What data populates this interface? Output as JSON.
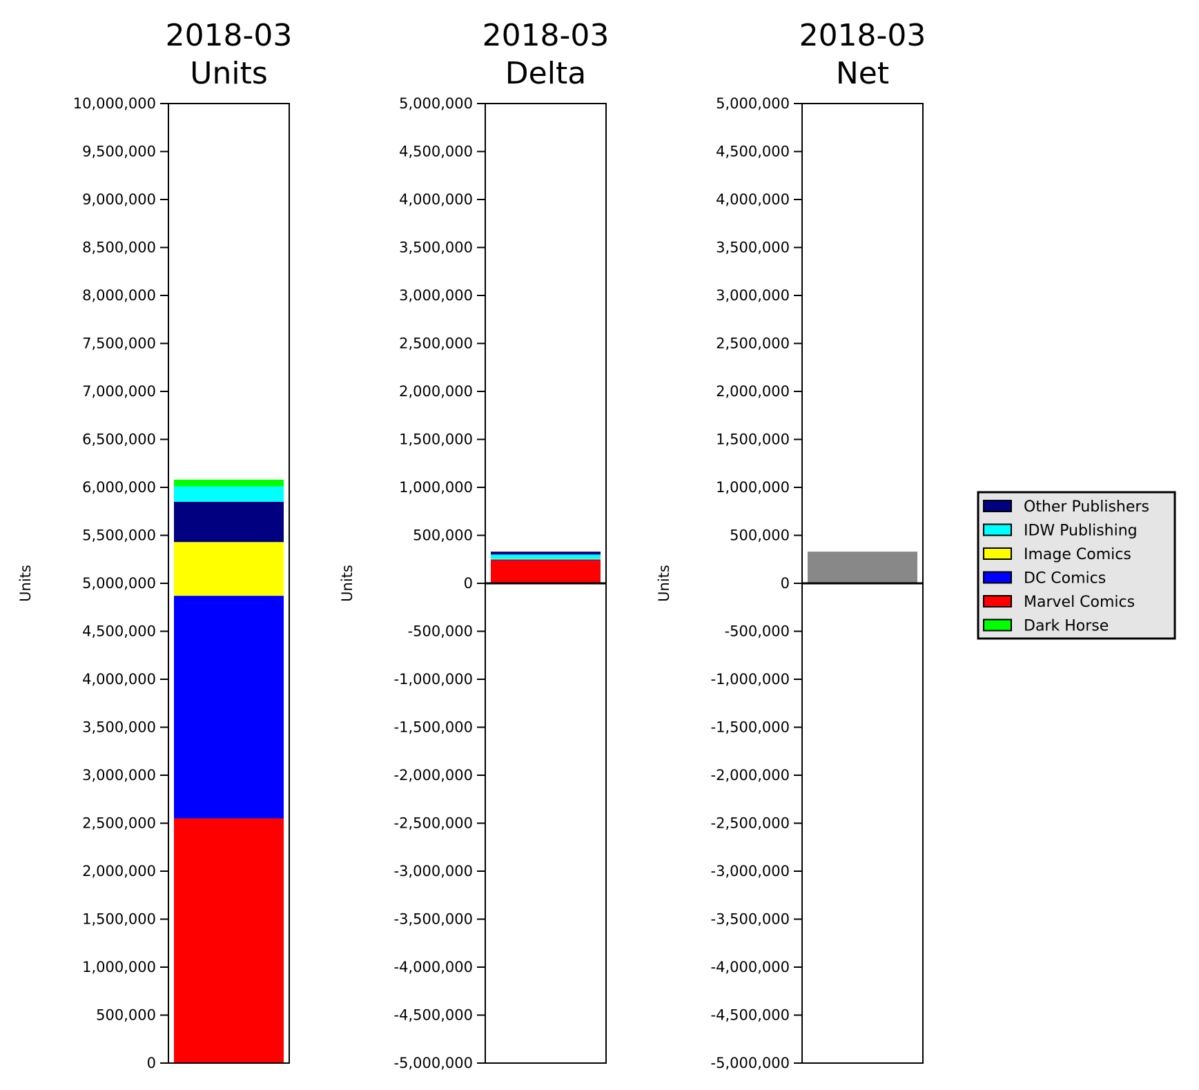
{
  "chart_data": [
    {
      "type": "bar",
      "stacked": true,
      "title_lines": [
        "2018-03",
        "Units"
      ],
      "ylabel": "Units",
      "ylim": [
        0,
        10000000
      ],
      "yticks": [
        0,
        500000,
        1000000,
        1500000,
        2000000,
        2500000,
        3000000,
        3500000,
        4000000,
        4500000,
        5000000,
        5500000,
        6000000,
        6500000,
        7000000,
        7500000,
        8000000,
        8500000,
        9000000,
        9500000,
        10000000
      ],
      "ytick_labels": [
        "0",
        "500,000",
        "1,000,000",
        "1,500,000",
        "2,000,000",
        "2,500,000",
        "3,000,000",
        "3,500,000",
        "4,000,000",
        "4,500,000",
        "5,000,000",
        "5,500,000",
        "6,000,000",
        "6,500,000",
        "7,000,000",
        "7,500,000",
        "8,000,000",
        "8,500,000",
        "9,000,000",
        "9,500,000",
        "10,000,000"
      ],
      "series": [
        {
          "name": "Marvel Comics",
          "value": 2550000,
          "color": "#ff0000"
        },
        {
          "name": "DC Comics",
          "value": 2320000,
          "color": "#0000ff"
        },
        {
          "name": "Image Comics",
          "value": 560000,
          "color": "#ffff00"
        },
        {
          "name": "Other Publishers",
          "value": 420000,
          "color": "#000080"
        },
        {
          "name": "IDW Publishing",
          "value": 160000,
          "color": "#00ffff"
        },
        {
          "name": "Dark Horse",
          "value": 70000,
          "color": "#00ff00"
        }
      ]
    },
    {
      "type": "bar",
      "stacked": true,
      "title_lines": [
        "2018-03",
        "Delta"
      ],
      "ylabel": "Units",
      "ylim": [
        -5000000,
        5000000
      ],
      "zero_line": true,
      "yticks": [
        -5000000,
        -4500000,
        -4000000,
        -3500000,
        -3000000,
        -2500000,
        -2000000,
        -1500000,
        -1000000,
        -500000,
        0,
        500000,
        1000000,
        1500000,
        2000000,
        2500000,
        3000000,
        3500000,
        4000000,
        4500000,
        5000000
      ],
      "ytick_labels": [
        "-5,000,000",
        "-4,500,000",
        "-4,000,000",
        "-3,500,000",
        "-3,000,000",
        "-2,500,000",
        "-2,000,000",
        "-1,500,000",
        "-1,000,000",
        "-500,000",
        "0",
        "500,000",
        "1,000,000",
        "1,500,000",
        "2,000,000",
        "2,500,000",
        "3,000,000",
        "3,500,000",
        "4,000,000",
        "4,500,000",
        "5,000,000"
      ],
      "series": [
        {
          "name": "Marvel Comics",
          "value": 240000,
          "color": "#ff0000"
        },
        {
          "name": "DC Comics",
          "value": 10000,
          "color": "#0000ff"
        },
        {
          "name": "Image Comics",
          "value": 5000,
          "color": "#ffff00"
        },
        {
          "name": "IDW Publishing",
          "value": 45000,
          "color": "#00ffff"
        },
        {
          "name": "Other Publishers",
          "value": 30000,
          "color": "#000080"
        }
      ]
    },
    {
      "type": "bar",
      "title_lines": [
        "2018-03",
        "Net"
      ],
      "ylabel": "Units",
      "ylim": [
        -5000000,
        5000000
      ],
      "zero_line": true,
      "yticks": [
        -5000000,
        -4500000,
        -4000000,
        -3500000,
        -3000000,
        -2500000,
        -2000000,
        -1500000,
        -1000000,
        -500000,
        0,
        500000,
        1000000,
        1500000,
        2000000,
        2500000,
        3000000,
        3500000,
        4000000,
        4500000,
        5000000
      ],
      "ytick_labels": [
        "-5,000,000",
        "-4,500,000",
        "-4,000,000",
        "-3,500,000",
        "-3,000,000",
        "-2,500,000",
        "-2,000,000",
        "-1,500,000",
        "-1,000,000",
        "-500,000",
        "0",
        "500,000",
        "1,000,000",
        "1,500,000",
        "2,000,000",
        "2,500,000",
        "3,000,000",
        "3,500,000",
        "4,000,000",
        "4,500,000",
        "5,000,000"
      ],
      "series": [
        {
          "value": 330000,
          "color": "#888888"
        }
      ]
    }
  ],
  "legend": {
    "placement": "right",
    "background": "#e5e5e5",
    "entries": [
      {
        "label": "Other Publishers",
        "color": "#000080"
      },
      {
        "label": "IDW Publishing",
        "color": "#00ffff"
      },
      {
        "label": "Image Comics",
        "color": "#ffff00"
      },
      {
        "label": "DC Comics",
        "color": "#0000ff"
      },
      {
        "label": "Marvel Comics",
        "color": "#ff0000"
      },
      {
        "label": "Dark Horse",
        "color": "#00ff00"
      }
    ]
  }
}
